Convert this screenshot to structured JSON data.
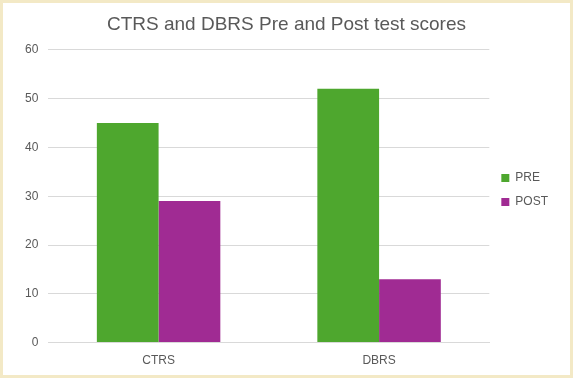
{
  "chart_data": {
    "type": "bar",
    "title": "CTRS and DBRS Pre and Post test scores",
    "categories": [
      "CTRS",
      "DBRS"
    ],
    "series": [
      {
        "name": "PRE",
        "color": "#4ea72e",
        "values": [
          45,
          52
        ]
      },
      {
        "name": "POST",
        "color": "#a02b93",
        "values": [
          29,
          13
        ]
      }
    ],
    "ylim": [
      0,
      60
    ],
    "yticks": [
      0,
      10,
      20,
      30,
      40,
      50,
      60
    ],
    "grid": true,
    "legend": "right"
  }
}
